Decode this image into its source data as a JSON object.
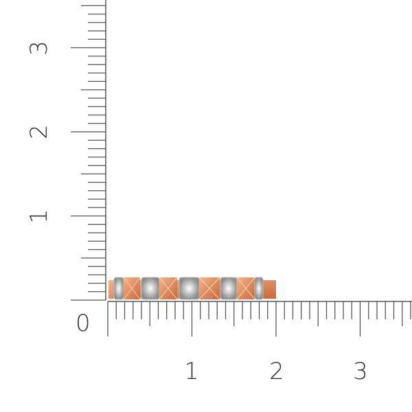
{
  "ruler": {
    "origin_label": "0",
    "vertical_labels": [
      "1",
      "2",
      "3"
    ],
    "horizontal_labels": [
      "1",
      "2",
      "3"
    ],
    "subdivisions_per_unit": 10
  },
  "product": {
    "kind": "ring",
    "metal_color": "#e8956a",
    "stones": 7,
    "colors": {
      "gold_light": "#f4b48a",
      "gold_dark": "#c8683e",
      "diamond": "#dcdcdc",
      "tick": "#555555"
    }
  }
}
